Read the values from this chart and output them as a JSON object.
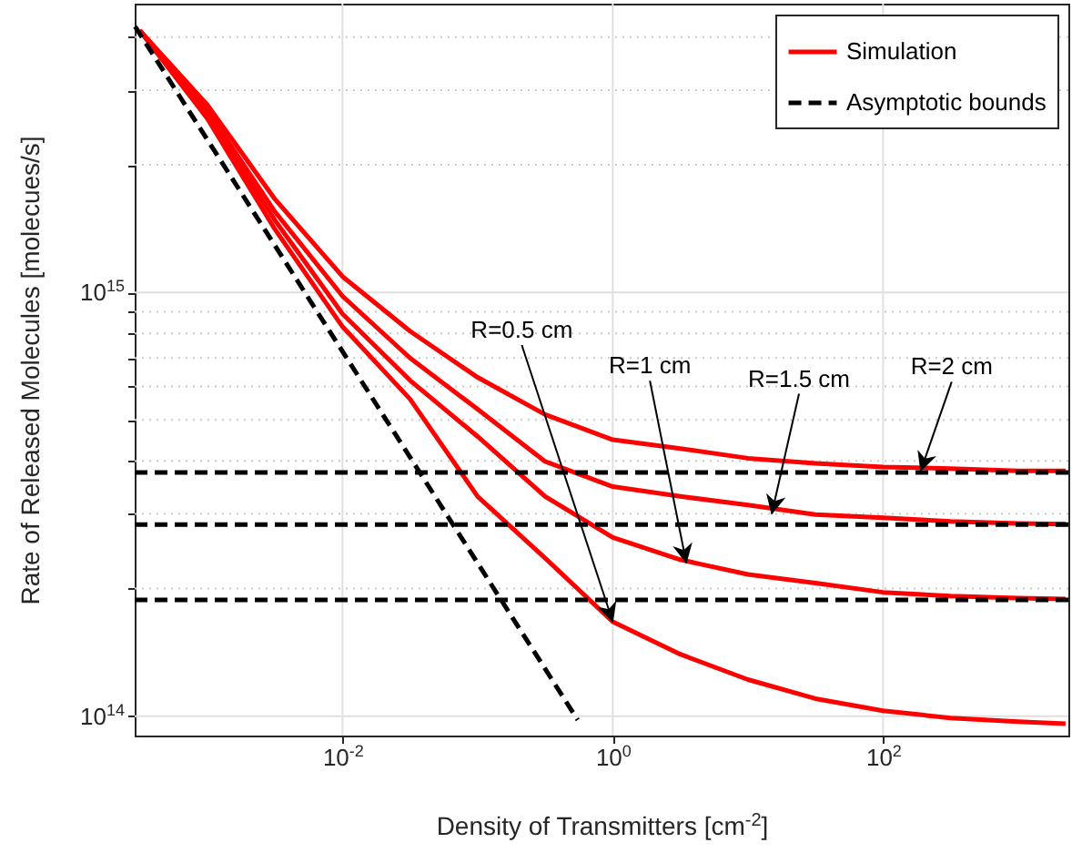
{
  "chart_data": {
    "type": "line",
    "xlabel": "Density of Transmitters [cm$^{-2}$]",
    "ylabel": "Rate of Released Molecules [molecues/s]",
    "log": "xy",
    "grid": true,
    "legend": "top right",
    "line_style": "solid",
    "marker": "none",
    "xlim": [
      0.00029,
      2350
    ],
    "ylim": [
      90000000000000.0,
      4800000000000000.0
    ],
    "xticks": [
      {
        "value": 0.01,
        "label": "10$^{-2}$"
      },
      {
        "value": 1,
        "label": "10$^{0}$"
      },
      {
        "value": 100,
        "label": "10$^{2}$"
      }
    ],
    "yticks": [
      {
        "value": 100000000000000.0,
        "label": "10$^{14}$"
      },
      {
        "value": 200000000000000.0,
        "label": null
      },
      {
        "value": 300000000000000.0,
        "label": null
      },
      {
        "value": 400000000000000.0,
        "label": null
      },
      {
        "value": 500000000000000.0,
        "label": null
      },
      {
        "value": 600000000000000.0,
        "label": null
      },
      {
        "value": 700000000000000.0,
        "label": null
      },
      {
        "value": 800000000000000.0,
        "label": null
      },
      {
        "value": 900000000000000.0,
        "label": null
      },
      {
        "value": 1000000000000000.0,
        "label": "10$^{15}$"
      },
      {
        "value": 2000000000000000.0,
        "label": null
      },
      {
        "value": 3000000000000000.0,
        "label": null
      },
      {
        "value": 4000000000000000.0,
        "label": null
      }
    ],
    "x": [
      0.000316,
      0.001,
      0.00316,
      0.01,
      0.0316,
      0.1,
      0.316,
      1,
      3.16,
      10,
      31.6,
      100,
      316,
      1000,
      2240
    ],
    "series": [
      {
        "name": "Simulation",
        "color": "#ff0000",
        "values": [
          4150000000000000.0,
          2770000000000000.0,
          1660000000000000.0,
          1090000000000000.0,
          810000000000000.0,
          630000000000000.0,
          515000000000000.0,
          449000000000000.0,
          428000000000000.0,
          406000000000000.0,
          395000000000000.0,
          387000000000000.0,
          384000000000000.0,
          379000000000000.0,
          379000000000000.0
        ]
      },
      {
        "color": "#ff0000",
        "values": [
          4150000000000000.0,
          2690000000000000.0,
          1550000000000000.0,
          980000000000000.0,
          700000000000000.0,
          530000000000000.0,
          399000000000000.0,
          348000000000000.0,
          330000000000000.0,
          315000000000000.0,
          299000000000000.0,
          294000000000000.0,
          288000000000000.0,
          285000000000000.0,
          284000000000000.0
        ]
      },
      {
        "color": "#ff0000",
        "values": [
          4150000000000000.0,
          2630000000000000.0,
          1480000000000000.0,
          890000000000000.0,
          620000000000000.0,
          457000000000000.0,
          330000000000000.0,
          264000000000000.0,
          234000000000000.0,
          216000000000000.0,
          206000000000000.0,
          196000000000000.0,
          192000000000000.0,
          190000000000000.0,
          189000000000000.0
        ]
      },
      {
        "color": "#ff0000",
        "values": [
          4150000000000000.0,
          2570000000000000.0,
          1410000000000000.0,
          830000000000000.0,
          560000000000000.0,
          330000000000000.0,
          236000000000000.0,
          167000000000000.0,
          140000000000000.0,
          122000000000000.0,
          110000000000000.0,
          103000000000000.0,
          99000000000000.0,
          97000000000000.0,
          96000000000000.0
        ]
      },
      {
        "name": "Asymptotic bounds",
        "color": "#000000",
        "line_style": "dashed",
        "x": [
          0.00029,
          2350
        ],
        "values": [
          376000000000000.0,
          376000000000000.0
        ]
      },
      {
        "color": "#000000",
        "line_style": "dashed",
        "x": [
          0.00029,
          2350
        ],
        "values": [
          283000000000000.0,
          283000000000000.0
        ]
      },
      {
        "color": "#000000",
        "line_style": "dashed",
        "x": [
          0.00029,
          2350
        ],
        "values": [
          188000000000000.0,
          188000000000000.0
        ]
      },
      {
        "color": "#000000",
        "line_style": "dashed",
        "x": [
          0.000292,
          0.55
        ],
        "values": [
          4240000000000000.0,
          98000000000000.0
        ]
      }
    ],
    "annotations": [
      {
        "text": "R=0.5 cm",
        "x": 1,
        "y": 167000000000000.0
      },
      {
        "text": "R=1 cm",
        "x": 3.5,
        "y": 230000000000000.0
      },
      {
        "text": "R=1.5 cm",
        "x": 15,
        "y": 300000000000000.0
      },
      {
        "text": "R=2 cm",
        "x": 190,
        "y": 379000000000000.0
      }
    ]
  }
}
